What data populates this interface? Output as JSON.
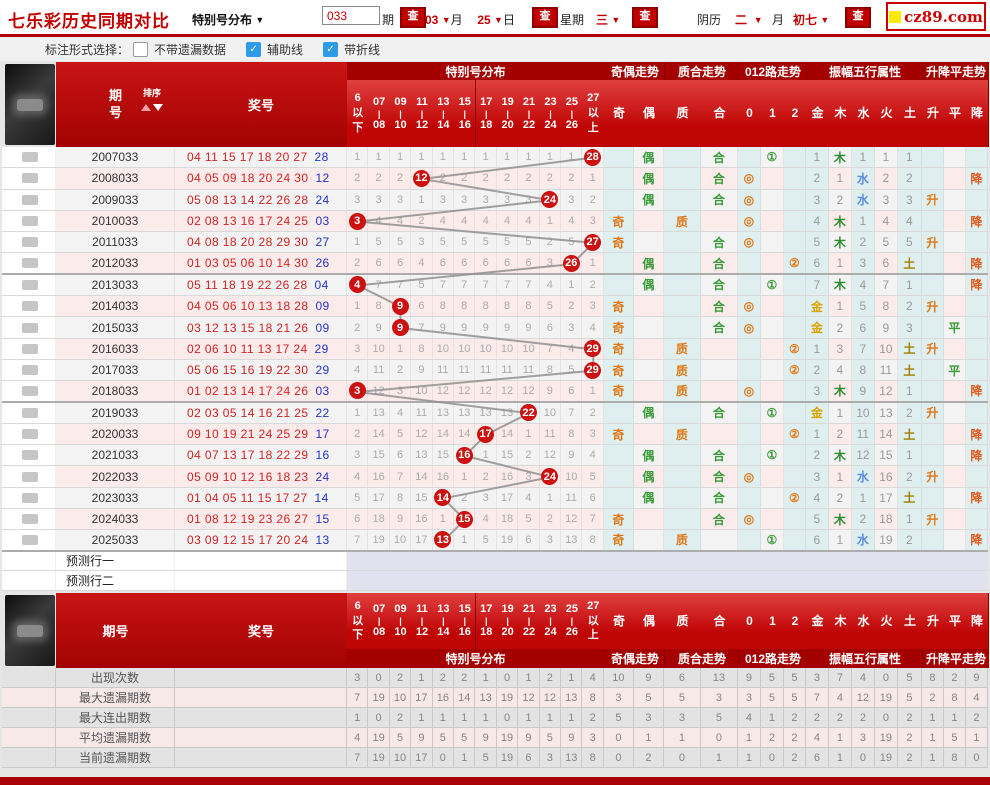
{
  "topbar": {
    "title": "七乐彩历史同期对比",
    "mode_select": "特别号分布",
    "issue_value": "033",
    "issue_suffix": "期",
    "search_label": "查",
    "month_value": "03",
    "month_label": "月",
    "day_value": "25",
    "day_label": "日",
    "week_label": "星期",
    "week_value": "三",
    "lunar_label": "阴历",
    "lunar_month_value": "二",
    "lunar_month_label": "月",
    "lunar_day_value": "初七",
    "logo_text": "cz89.com"
  },
  "optionbar": {
    "label": "标注形式选择：",
    "options": [
      {
        "label": "不带遗漏数据",
        "checked": false
      },
      {
        "label": "辅助线",
        "checked": true
      },
      {
        "label": "带折线",
        "checked": true
      }
    ]
  },
  "palette": {
    "odd": "#E07818",
    "even": "#3B9B3B",
    "prime": "#E07818",
    "composite": "#3B9B3B",
    "road0": "#E07818",
    "road1": "#3B9B3B",
    "road2": "#E07818",
    "metal": "#D9A400",
    "wood": "#2E8B2E",
    "water": "#5B8DDE",
    "fire": "#D03030",
    "earth": "#A08000",
    "up": "#E07818",
    "flat": "#3B9B3B",
    "down": "#E05A1E",
    "miss": "#ABABAB",
    "ball_red": "#CC1111",
    "line": "#8F8F8F",
    "row_even": "#F3F3F3",
    "row_odd": "#FCEBEB",
    "cyan_col": "#DFEFEF",
    "pred_bg": "#E1E1F0"
  },
  "table": {
    "period_header": "期号",
    "sort_label": "排序",
    "prize_header": "奖号",
    "dist_group": "特别号分布",
    "dist_cols": [
      [
        "6",
        "以",
        "下"
      ],
      [
        "07",
        "|",
        "08"
      ],
      [
        "09",
        "|",
        "10"
      ],
      [
        "11",
        "|",
        "12"
      ],
      [
        "13",
        "|",
        "14"
      ],
      [
        "15",
        "|",
        "16"
      ],
      [
        "17",
        "|",
        "18"
      ],
      [
        "19",
        "|",
        "20"
      ],
      [
        "21",
        "|",
        "22"
      ],
      [
        "23",
        "|",
        "24"
      ],
      [
        "25",
        "|",
        "26"
      ],
      [
        "27",
        "以",
        "上"
      ]
    ],
    "groups": [
      {
        "label": "奇偶走势",
        "cols": [
          "奇",
          "偶"
        ]
      },
      {
        "label": "质合走势",
        "cols": [
          "质",
          "合"
        ]
      },
      {
        "label": "012路走势",
        "cols": [
          "0",
          "1",
          "2"
        ]
      },
      {
        "label": "振幅五行属性",
        "cols": [
          "金",
          "木",
          "水",
          "火",
          "土"
        ]
      },
      {
        "label": "升降平走势",
        "cols": [
          "升",
          "平",
          "降"
        ]
      }
    ],
    "prediction_rows": [
      {
        "label": "预测行一",
        "arrow": false
      },
      {
        "label": "预测行二",
        "arrow": true
      }
    ],
    "rows": [
      {
        "period": "2007033",
        "balls": [
          "04",
          "11",
          "15",
          "17",
          "18",
          "20",
          "27"
        ],
        "special": "28",
        "col": 11,
        "miss": [
          "1",
          "1",
          "1",
          "1",
          "1",
          "1",
          "1",
          "1",
          "1",
          "1",
          "1",
          ""
        ],
        "trend": [
          "",
          "偶",
          "",
          "合",
          "",
          "①",
          "",
          "1",
          "木",
          "1",
          "1",
          "1",
          "",
          "",
          ""
        ]
      },
      {
        "period": "2008033",
        "balls": [
          "04",
          "05",
          "09",
          "18",
          "20",
          "24",
          "30"
        ],
        "special": "12",
        "col": 3,
        "miss": [
          "2",
          "2",
          "2",
          "",
          "2",
          "2",
          "2",
          "2",
          "2",
          "2",
          "2",
          "1"
        ],
        "trend": [
          "",
          "偶",
          "",
          "合",
          "◎",
          "",
          "",
          "2",
          "1",
          "水",
          "2",
          "2",
          "",
          "",
          "降"
        ]
      },
      {
        "period": "2009033",
        "balls": [
          "05",
          "08",
          "13",
          "14",
          "22",
          "26",
          "28"
        ],
        "special": "24",
        "col": 9,
        "miss": [
          "3",
          "3",
          "3",
          "1",
          "3",
          "3",
          "3",
          "3",
          "3",
          "",
          "3",
          "2"
        ],
        "trend": [
          "",
          "偶",
          "",
          "合",
          "◎",
          "",
          "",
          "3",
          "2",
          "水",
          "3",
          "3",
          "升",
          "",
          ""
        ]
      },
      {
        "period": "2010033",
        "balls": [
          "02",
          "08",
          "13",
          "16",
          "17",
          "24",
          "25"
        ],
        "special": "03",
        "col": 0,
        "miss": [
          "",
          "4",
          "4",
          "2",
          "4",
          "4",
          "4",
          "4",
          "4",
          "1",
          "4",
          "3"
        ],
        "trend": [
          "奇",
          "",
          "质",
          "",
          "◎",
          "",
          "",
          "4",
          "木",
          "1",
          "4",
          "4",
          "",
          "",
          "降"
        ]
      },
      {
        "period": "2011033",
        "balls": [
          "04",
          "08",
          "18",
          "20",
          "28",
          "29",
          "30"
        ],
        "special": "27",
        "col": 11,
        "miss": [
          "1",
          "5",
          "5",
          "3",
          "5",
          "5",
          "5",
          "5",
          "5",
          "2",
          "5",
          ""
        ],
        "trend": [
          "奇",
          "",
          "",
          "合",
          "◎",
          "",
          "",
          "5",
          "木",
          "2",
          "5",
          "5",
          "升",
          "",
          ""
        ]
      },
      {
        "period": "2012033",
        "balls": [
          "01",
          "03",
          "05",
          "06",
          "10",
          "14",
          "30"
        ],
        "special": "26",
        "col": 10,
        "miss": [
          "2",
          "6",
          "6",
          "4",
          "6",
          "6",
          "6",
          "6",
          "6",
          "3",
          "",
          "1"
        ],
        "trend": [
          "",
          "偶",
          "",
          "合",
          "",
          "",
          "②",
          "6",
          "1",
          "3",
          "6",
          "土",
          "",
          "",
          "降"
        ]
      },
      {
        "period": "2013033",
        "balls": [
          "05",
          "11",
          "18",
          "19",
          "22",
          "26",
          "28"
        ],
        "special": "04",
        "col": 0,
        "miss": [
          "",
          "7",
          "7",
          "5",
          "7",
          "7",
          "7",
          "7",
          "7",
          "4",
          "1",
          "2"
        ],
        "trend": [
          "",
          "偶",
          "",
          "合",
          "",
          "①",
          "",
          "7",
          "木",
          "4",
          "7",
          "1",
          "",
          "",
          "降"
        ]
      },
      {
        "period": "2014033",
        "balls": [
          "04",
          "05",
          "06",
          "10",
          "13",
          "18",
          "28"
        ],
        "special": "09",
        "col": 2,
        "miss": [
          "1",
          "8",
          "",
          "6",
          "8",
          "8",
          "8",
          "8",
          "8",
          "5",
          "2",
          "3"
        ],
        "trend": [
          "奇",
          "",
          "",
          "合",
          "◎",
          "",
          "",
          "金",
          "1",
          "5",
          "8",
          "2",
          "升",
          "",
          ""
        ]
      },
      {
        "period": "2015033",
        "balls": [
          "03",
          "12",
          "13",
          "15",
          "18",
          "21",
          "26"
        ],
        "special": "09",
        "col": 2,
        "miss": [
          "2",
          "9",
          "",
          "7",
          "9",
          "9",
          "9",
          "9",
          "9",
          "6",
          "3",
          "4"
        ],
        "trend": [
          "奇",
          "",
          "",
          "合",
          "◎",
          "",
          "",
          "金",
          "2",
          "6",
          "9",
          "3",
          "",
          "平",
          ""
        ]
      },
      {
        "period": "2016033",
        "balls": [
          "02",
          "06",
          "10",
          "11",
          "13",
          "17",
          "24"
        ],
        "special": "29",
        "col": 11,
        "miss": [
          "3",
          "10",
          "1",
          "8",
          "10",
          "10",
          "10",
          "10",
          "10",
          "7",
          "4",
          ""
        ],
        "trend": [
          "奇",
          "",
          "质",
          "",
          "",
          "",
          "②",
          "1",
          "3",
          "7",
          "10",
          "土",
          "升",
          "",
          ""
        ]
      },
      {
        "period": "2017033",
        "balls": [
          "05",
          "06",
          "15",
          "16",
          "19",
          "22",
          "30"
        ],
        "special": "29",
        "col": 11,
        "miss": [
          "4",
          "11",
          "2",
          "9",
          "11",
          "11",
          "11",
          "11",
          "11",
          "8",
          "5",
          ""
        ],
        "trend": [
          "奇",
          "",
          "质",
          "",
          "",
          "",
          "②",
          "2",
          "4",
          "8",
          "11",
          "土",
          "",
          "平",
          ""
        ]
      },
      {
        "period": "2018033",
        "balls": [
          "01",
          "02",
          "13",
          "14",
          "17",
          "24",
          "26"
        ],
        "special": "03",
        "col": 0,
        "miss": [
          "",
          "12",
          "3",
          "10",
          "12",
          "12",
          "12",
          "12",
          "12",
          "9",
          "6",
          "1"
        ],
        "trend": [
          "奇",
          "",
          "质",
          "",
          "◎",
          "",
          "",
          "3",
          "木",
          "9",
          "12",
          "1",
          "",
          "",
          "降"
        ]
      },
      {
        "period": "2019033",
        "balls": [
          "02",
          "03",
          "05",
          "14",
          "16",
          "21",
          "25"
        ],
        "special": "22",
        "col": 8,
        "miss": [
          "1",
          "13",
          "4",
          "11",
          "13",
          "13",
          "13",
          "13",
          "",
          "10",
          "7",
          "2"
        ],
        "trend": [
          "",
          "偶",
          "",
          "合",
          "",
          "①",
          "",
          "金",
          "1",
          "10",
          "13",
          "2",
          "升",
          "",
          ""
        ]
      },
      {
        "period": "2020033",
        "balls": [
          "09",
          "10",
          "19",
          "21",
          "24",
          "25",
          "29"
        ],
        "special": "17",
        "col": 6,
        "miss": [
          "2",
          "14",
          "5",
          "12",
          "14",
          "14",
          "",
          "14",
          "1",
          "11",
          "8",
          "3"
        ],
        "trend": [
          "奇",
          "",
          "质",
          "",
          "",
          "",
          "②",
          "1",
          "2",
          "11",
          "14",
          "土",
          "",
          "",
          "降"
        ]
      },
      {
        "period": "2021033",
        "balls": [
          "04",
          "07",
          "13",
          "17",
          "18",
          "22",
          "29"
        ],
        "special": "16",
        "col": 5,
        "miss": [
          "3",
          "15",
          "6",
          "13",
          "15",
          "",
          "1",
          "15",
          "2",
          "12",
          "9",
          "4"
        ],
        "trend": [
          "",
          "偶",
          "",
          "合",
          "",
          "①",
          "",
          "2",
          "木",
          "12",
          "15",
          "1",
          "",
          "",
          "降"
        ]
      },
      {
        "period": "2022033",
        "balls": [
          "05",
          "09",
          "10",
          "12",
          "16",
          "18",
          "23"
        ],
        "special": "24",
        "col": 9,
        "miss": [
          "4",
          "16",
          "7",
          "14",
          "16",
          "1",
          "2",
          "16",
          "3",
          "",
          "10",
          "5"
        ],
        "trend": [
          "",
          "偶",
          "",
          "合",
          "◎",
          "",
          "",
          "3",
          "1",
          "水",
          "16",
          "2",
          "升",
          "",
          ""
        ]
      },
      {
        "period": "2023033",
        "balls": [
          "01",
          "04",
          "05",
          "11",
          "15",
          "17",
          "27"
        ],
        "special": "14",
        "col": 4,
        "miss": [
          "5",
          "17",
          "8",
          "15",
          "",
          "2",
          "3",
          "17",
          "4",
          "1",
          "11",
          "6"
        ],
        "trend": [
          "",
          "偶",
          "",
          "合",
          "",
          "",
          "②",
          "4",
          "2",
          "1",
          "17",
          "土",
          "",
          "",
          "降"
        ]
      },
      {
        "period": "2024033",
        "balls": [
          "01",
          "08",
          "12",
          "19",
          "23",
          "26",
          "27"
        ],
        "special": "15",
        "col": 5,
        "miss": [
          "6",
          "18",
          "9",
          "16",
          "1",
          "",
          "4",
          "18",
          "5",
          "2",
          "12",
          "7"
        ],
        "trend": [
          "奇",
          "",
          "",
          "合",
          "◎",
          "",
          "",
          "5",
          "木",
          "2",
          "18",
          "1",
          "升",
          "",
          ""
        ]
      },
      {
        "period": "2025033",
        "balls": [
          "03",
          "09",
          "12",
          "15",
          "17",
          "20",
          "24"
        ],
        "special": "13",
        "col": 4,
        "miss": [
          "7",
          "19",
          "10",
          "17",
          "",
          "1",
          "5",
          "19",
          "6",
          "3",
          "13",
          "8"
        ],
        "trend": [
          "奇",
          "",
          "质",
          "",
          "",
          "①",
          "",
          "6",
          "1",
          "水",
          "19",
          "2",
          "",
          "",
          "降"
        ]
      }
    ]
  },
  "stats": {
    "rows": [
      {
        "label": "出现次数",
        "dist": [
          "3",
          "0",
          "2",
          "1",
          "2",
          "2",
          "1",
          "0",
          "1",
          "2",
          "1",
          "4"
        ],
        "trend": [
          "10",
          "9",
          "6",
          "13",
          "9",
          "5",
          "5",
          "3",
          "7",
          "4",
          "0",
          "5",
          "8",
          "2",
          "9"
        ]
      },
      {
        "label": "最大遗漏期数",
        "dist": [
          "7",
          "19",
          "10",
          "17",
          "16",
          "14",
          "13",
          "19",
          "12",
          "12",
          "13",
          "8"
        ],
        "trend": [
          "3",
          "5",
          "5",
          "3",
          "3",
          "5",
          "5",
          "7",
          "4",
          "12",
          "19",
          "5",
          "2",
          "8",
          "4"
        ]
      },
      {
        "label": "最大连出期数",
        "dist": [
          "1",
          "0",
          "2",
          "1",
          "1",
          "1",
          "1",
          "0",
          "1",
          "1",
          "1",
          "2"
        ],
        "trend": [
          "5",
          "3",
          "3",
          "5",
          "4",
          "1",
          "2",
          "2",
          "2",
          "2",
          "0",
          "2",
          "1",
          "1",
          "2"
        ]
      },
      {
        "label": "平均遗漏期数",
        "dist": [
          "4",
          "19",
          "5",
          "9",
          "5",
          "5",
          "9",
          "19",
          "9",
          "5",
          "9",
          "3"
        ],
        "trend": [
          "0",
          "1",
          "1",
          "0",
          "1",
          "2",
          "2",
          "4",
          "1",
          "3",
          "19",
          "2",
          "1",
          "5",
          "1"
        ]
      },
      {
        "label": "当前遗漏期数",
        "dist": [
          "7",
          "19",
          "10",
          "17",
          "0",
          "1",
          "5",
          "19",
          "6",
          "3",
          "13",
          "8"
        ],
        "trend": [
          "0",
          "2",
          "0",
          "1",
          "1",
          "0",
          "2",
          "6",
          "1",
          "0",
          "19",
          "2",
          "1",
          "8",
          "0"
        ]
      }
    ]
  }
}
